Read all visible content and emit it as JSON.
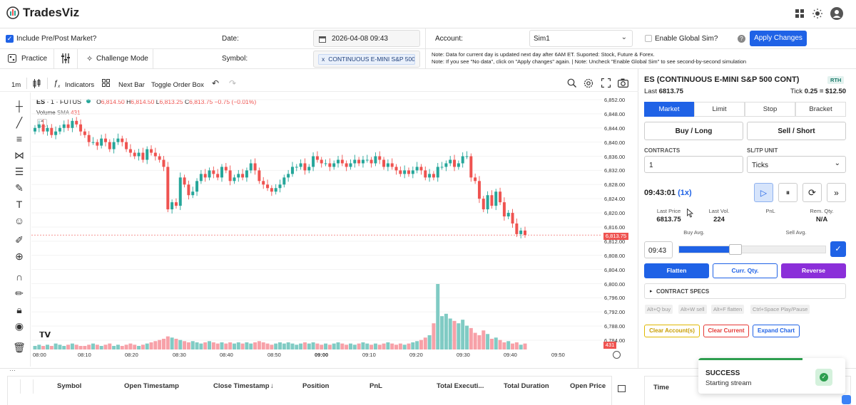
{
  "header": {
    "logo_text": "TradesViz",
    "grid_icon": "grid-icon",
    "theme_icon": "sun-icon",
    "user_icon": "user-icon"
  },
  "settings": {
    "prepost_label": "Include Pre/Post Market?",
    "date_label": "Date:",
    "date_value": "2026-04-08 09:43",
    "account_label": "Account:",
    "account_value": "Sim1",
    "global_sim_label": "Enable Global Sim?",
    "apply_label": "Apply Changes",
    "practice_label": "Practice",
    "challenge_label": "Challenge Mode",
    "symbol_label": "Symbol:",
    "symbol_value": "CONTINUOUS E-MINI S&P 500",
    "symbol_remove": "x",
    "note_line1": "Note: Data for current day is updated next day after 6AM ET. Suported: Stock, Future & Forex.",
    "note_line2": "Note: If you see \"No data\", click on \"Apply changes\" again. | Note: Uncheck \"Enable Global Sim\" to see second-by-second simulation"
  },
  "chart_toolbar": {
    "interval": "1m",
    "indicators": "Indicators",
    "next_bar": "Next Bar",
    "toggle_order_box": "Toggle Order Box"
  },
  "legend": {
    "symbol": "ES",
    "interval": "· 1 · FUTUS",
    "o_label": "O",
    "o": "6,814.50",
    "h_label": "H",
    "h": "6,814.50",
    "l_label": "L",
    "l": "6,813.25",
    "c_label": "C",
    "c": "6,813.75",
    "change": "−0.75 (−0.01%)",
    "volume_label": "Volume",
    "sma_label": "SMA",
    "volume_value": "431"
  },
  "chart_data": {
    "type": "candlestick",
    "title": "",
    "y_ticks": [
      "6,852.00",
      "6,848.00",
      "6,844.00",
      "6,840.00",
      "6,836.00",
      "6,832.00",
      "6,828.00",
      "6,824.00",
      "6,820.00",
      "6,816.00",
      "6,812.00",
      "6,808.00",
      "6,804.00",
      "6,800.00",
      "6,796.00",
      "6,792.00",
      "6,788.00",
      "6,784.00"
    ],
    "x_ticks": [
      "08:00",
      "08:10",
      "08:20",
      "08:30",
      "08:40",
      "08:50",
      "09:00",
      "09:10",
      "09:20",
      "09:30",
      "09:40",
      "09:50"
    ],
    "ylim": [
      6782,
      6853
    ],
    "last_price_label": "6,813.75",
    "last_volume_label": "431",
    "colors": {
      "up": "#26a69a",
      "down": "#ef5350",
      "vol_up": "#80cbc4",
      "vol_down": "#f7a1a8"
    },
    "closes": [
      6844,
      6845,
      6843,
      6844,
      6842,
      6843,
      6844,
      6845,
      6844,
      6846,
      6845,
      6843,
      6842,
      6840,
      6840,
      6839,
      6841,
      6840,
      6838,
      6840,
      6841,
      6840,
      6838,
      6837,
      6836,
      6837,
      6835,
      6838,
      6837,
      6836,
      6835,
      6833,
      6821,
      6823,
      6822,
      6830,
      6828,
      6825,
      6826,
      6829,
      6831,
      6830,
      6832,
      6831,
      6830,
      6833,
      6832,
      6829,
      6830,
      6831,
      6830,
      6832,
      6834,
      6832,
      6829,
      6828,
      6827,
      6826,
      6827,
      6828,
      6830,
      6831,
      6833,
      6833,
      6834,
      6832,
      6833,
      6836,
      6835,
      6834,
      6834,
      6833,
      6834,
      6835,
      6834,
      6833,
      6834,
      6835,
      6834,
      6835,
      6835,
      6834,
      6836,
      6835,
      6833,
      6834,
      6833,
      6832,
      6831,
      6832,
      6831,
      6832,
      6833,
      6832,
      6830,
      6831,
      6830,
      6833,
      6833,
      6834,
      6835,
      6833,
      6834,
      6836,
      6836,
      6830,
      6829,
      6824,
      6821,
      6825,
      6822,
      6826,
      6823,
      6819,
      6820,
      6817,
      6814,
      6815,
      6813.75
    ],
    "volumes": [
      3,
      4,
      3,
      4,
      3,
      5,
      4,
      3,
      4,
      5,
      4,
      3,
      3,
      4,
      5,
      4,
      3,
      4,
      5,
      3,
      4,
      3,
      4,
      5,
      4,
      3,
      4,
      5,
      6,
      7,
      8,
      9,
      11,
      10,
      9,
      8,
      7,
      6,
      7,
      6,
      5,
      6,
      7,
      6,
      5,
      6,
      5,
      6,
      5,
      6,
      5,
      6,
      5,
      6,
      7,
      6,
      5,
      4,
      5,
      6,
      5,
      6,
      5,
      4,
      5,
      6,
      5,
      6,
      5,
      4,
      5,
      4,
      5,
      6,
      5,
      4,
      5,
      4,
      5,
      6,
      5,
      4,
      5,
      4,
      5,
      6,
      5,
      4,
      5,
      4,
      5,
      6,
      7,
      8,
      10,
      12,
      22,
      55,
      28,
      30,
      26,
      24,
      22,
      25,
      20,
      18,
      14,
      12,
      16,
      13,
      9,
      10,
      8,
      6,
      7,
      5,
      6,
      4,
      5
    ]
  },
  "order_panel": {
    "title": "ES (CONTINUOUS E-MINI S&P 500 CONT)",
    "rth": "RTH",
    "last_label": "Last",
    "last_value": "6813.75",
    "tick_label": "Tick",
    "tick_value": "0.25 = $12.50",
    "order_types": [
      "Market",
      "Limit",
      "Stop",
      "Bracket"
    ],
    "buy_label": "Buy / Long",
    "sell_label": "Sell / Short",
    "contracts_label": "CONTRACTS",
    "contracts_value": "1",
    "sltp_label": "SL/TP UNIT",
    "sltp_value": "Ticks",
    "clock": "09:43:01",
    "speed": "(1x)",
    "last_price_label": "Last Price",
    "last_price_value": "6813.75",
    "last_vol_label": "Last Vol.",
    "last_vol_value": "224",
    "pnl_label": "PnL",
    "rem_qty_label": "Rem. Qty.",
    "rem_qty_value": "N/A",
    "buy_avg_label": "Buy Avg.",
    "sell_avg_label": "Sell Avg.",
    "time_value": "09:43",
    "progress": 0.36,
    "flatten_label": "Flatten",
    "curr_qty_label": "Curr. Qty.",
    "reverse_label": "Reverse",
    "contract_specs_label": "CONTRACT SPECS",
    "shortcuts": [
      "Alt+Q buy",
      "Alt+W sell",
      "Alt+F flatten",
      "Ctrl+Space Play/Pause"
    ],
    "clear_accounts_label": "Clear Account(s)",
    "clear_current_label": "Clear Current",
    "expand_chart_label": "Expand Chart"
  },
  "toast": {
    "title": "SUCCESS",
    "message": "Starting stream"
  },
  "trades_table": {
    "columns": [
      "Symbol",
      "Open Timestamp",
      "Close Timestamp",
      "Position",
      "PnL",
      "Total Executi...",
      "Total Duration",
      "Open Price"
    ],
    "sort_arrow": "↓"
  },
  "right_table": {
    "columns": [
      "Time"
    ]
  }
}
